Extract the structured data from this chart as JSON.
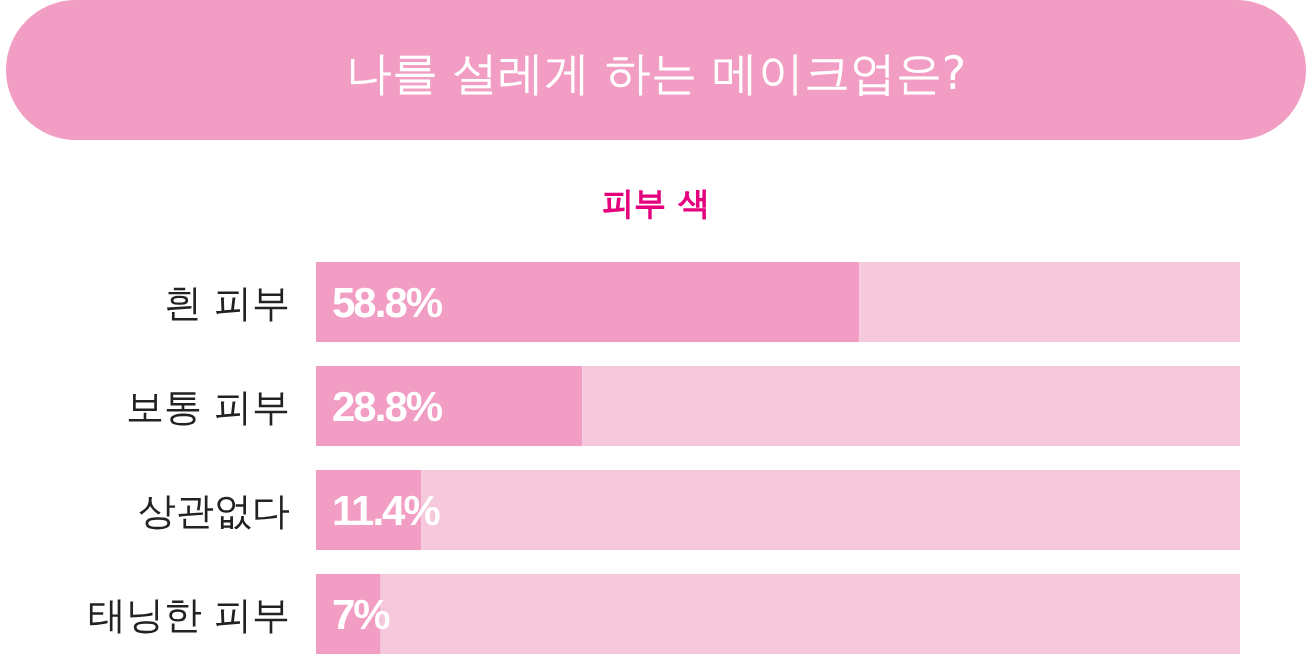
{
  "chart_data": {
    "type": "bar",
    "orientation": "horizontal",
    "stacked": true,
    "title": "나를 설레게 하는 메이크업은?",
    "subtitle": "피부 색",
    "categories": [
      "흰 피부",
      "보통 피부",
      "상관없다",
      "태닝한 피부"
    ],
    "series": [
      {
        "color": "#f29ec4",
        "values": [
          58.8,
          28.8,
          11.4,
          7
        ],
        "value_labels": [
          "58.8%",
          "28.8%",
          "11.4%",
          "7%"
        ]
      },
      {
        "color": "#f6c8dc",
        "values": [
          41.2,
          71.2,
          88.6,
          93
        ]
      }
    ],
    "xlim": [
      0,
      100
    ],
    "tick_labels": "y"
  }
}
